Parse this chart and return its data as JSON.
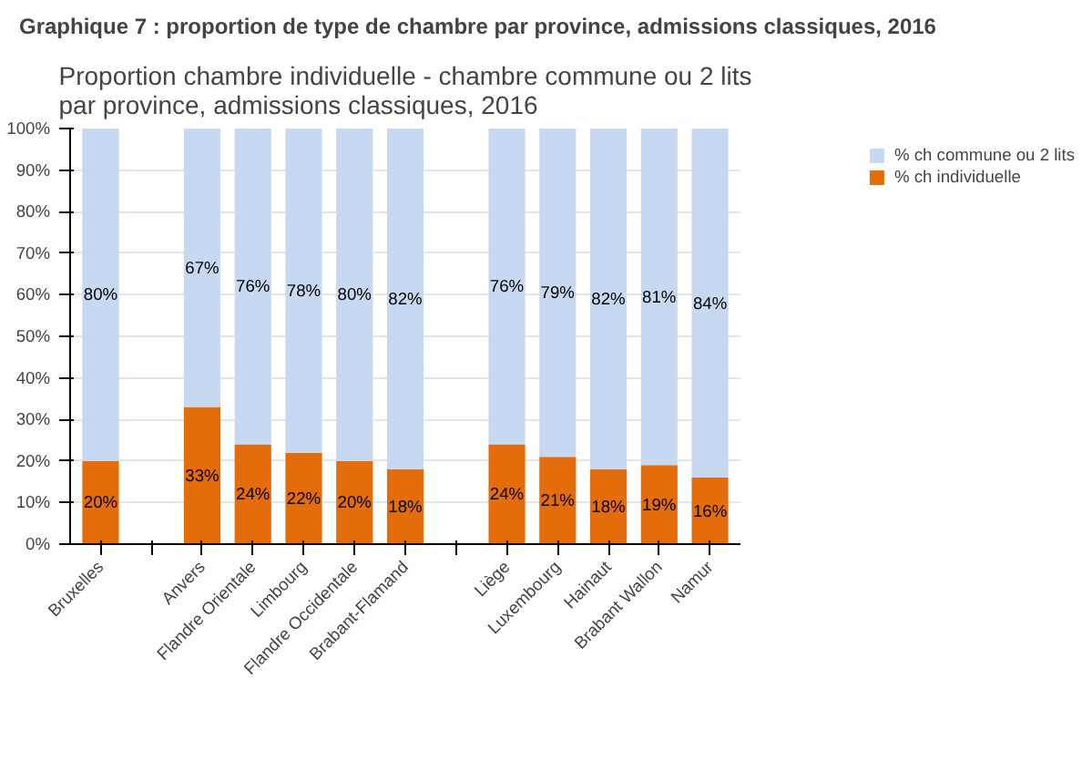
{
  "chart_data": {
    "type": "bar",
    "stacked": true,
    "title": "Graphique 7 : proportion de type de chambre par province, admissions classiques, 2016",
    "subtitle": "Proportion chambre individuelle - chambre commune ou 2 lits\npar province, admissions classiques, 2016",
    "categories": [
      "Bruxelles",
      null,
      "Anvers",
      "Flandre Orientale",
      "Limbourg",
      "Flandre Occidentale",
      "Brabant-Flamand",
      null,
      "Liège",
      "Luxembourg",
      "Hainaut",
      "Brabant Wallon",
      "Namur"
    ],
    "series": [
      {
        "name": "% ch individuelle",
        "color": "#e46c0a",
        "values": [
          20,
          null,
          33,
          24,
          22,
          20,
          18,
          null,
          24,
          21,
          18,
          19,
          16
        ],
        "value_labels": [
          "20%",
          null,
          "33%",
          "24%",
          "22%",
          "20%",
          "18%",
          null,
          "24%",
          "21%",
          "18%",
          "19%",
          "16%"
        ]
      },
      {
        "name": "% ch commune ou 2 lits",
        "color": "#c6d9f1",
        "values": [
          80,
          null,
          67,
          76,
          78,
          80,
          82,
          null,
          76,
          79,
          82,
          81,
          84
        ],
        "value_labels": [
          "80%",
          null,
          "67%",
          "76%",
          "78%",
          "80%",
          "82%",
          null,
          "76%",
          "79%",
          "82%",
          "81%",
          "84%"
        ]
      }
    ],
    "ylim": [
      0,
      100
    ],
    "yticks": [
      {
        "value": 0,
        "label": "0%"
      },
      {
        "value": 10,
        "label": "10%"
      },
      {
        "value": 20,
        "label": "20%"
      },
      {
        "value": 30,
        "label": "30%"
      },
      {
        "value": 40,
        "label": "40%"
      },
      {
        "value": 50,
        "label": "50%"
      },
      {
        "value": 60,
        "label": "60%"
      },
      {
        "value": 70,
        "label": "70%"
      },
      {
        "value": 80,
        "label": "80%"
      },
      {
        "value": 90,
        "label": "90%"
      },
      {
        "value": 100,
        "label": "100%"
      }
    ],
    "grid": "y",
    "legend": "right"
  }
}
